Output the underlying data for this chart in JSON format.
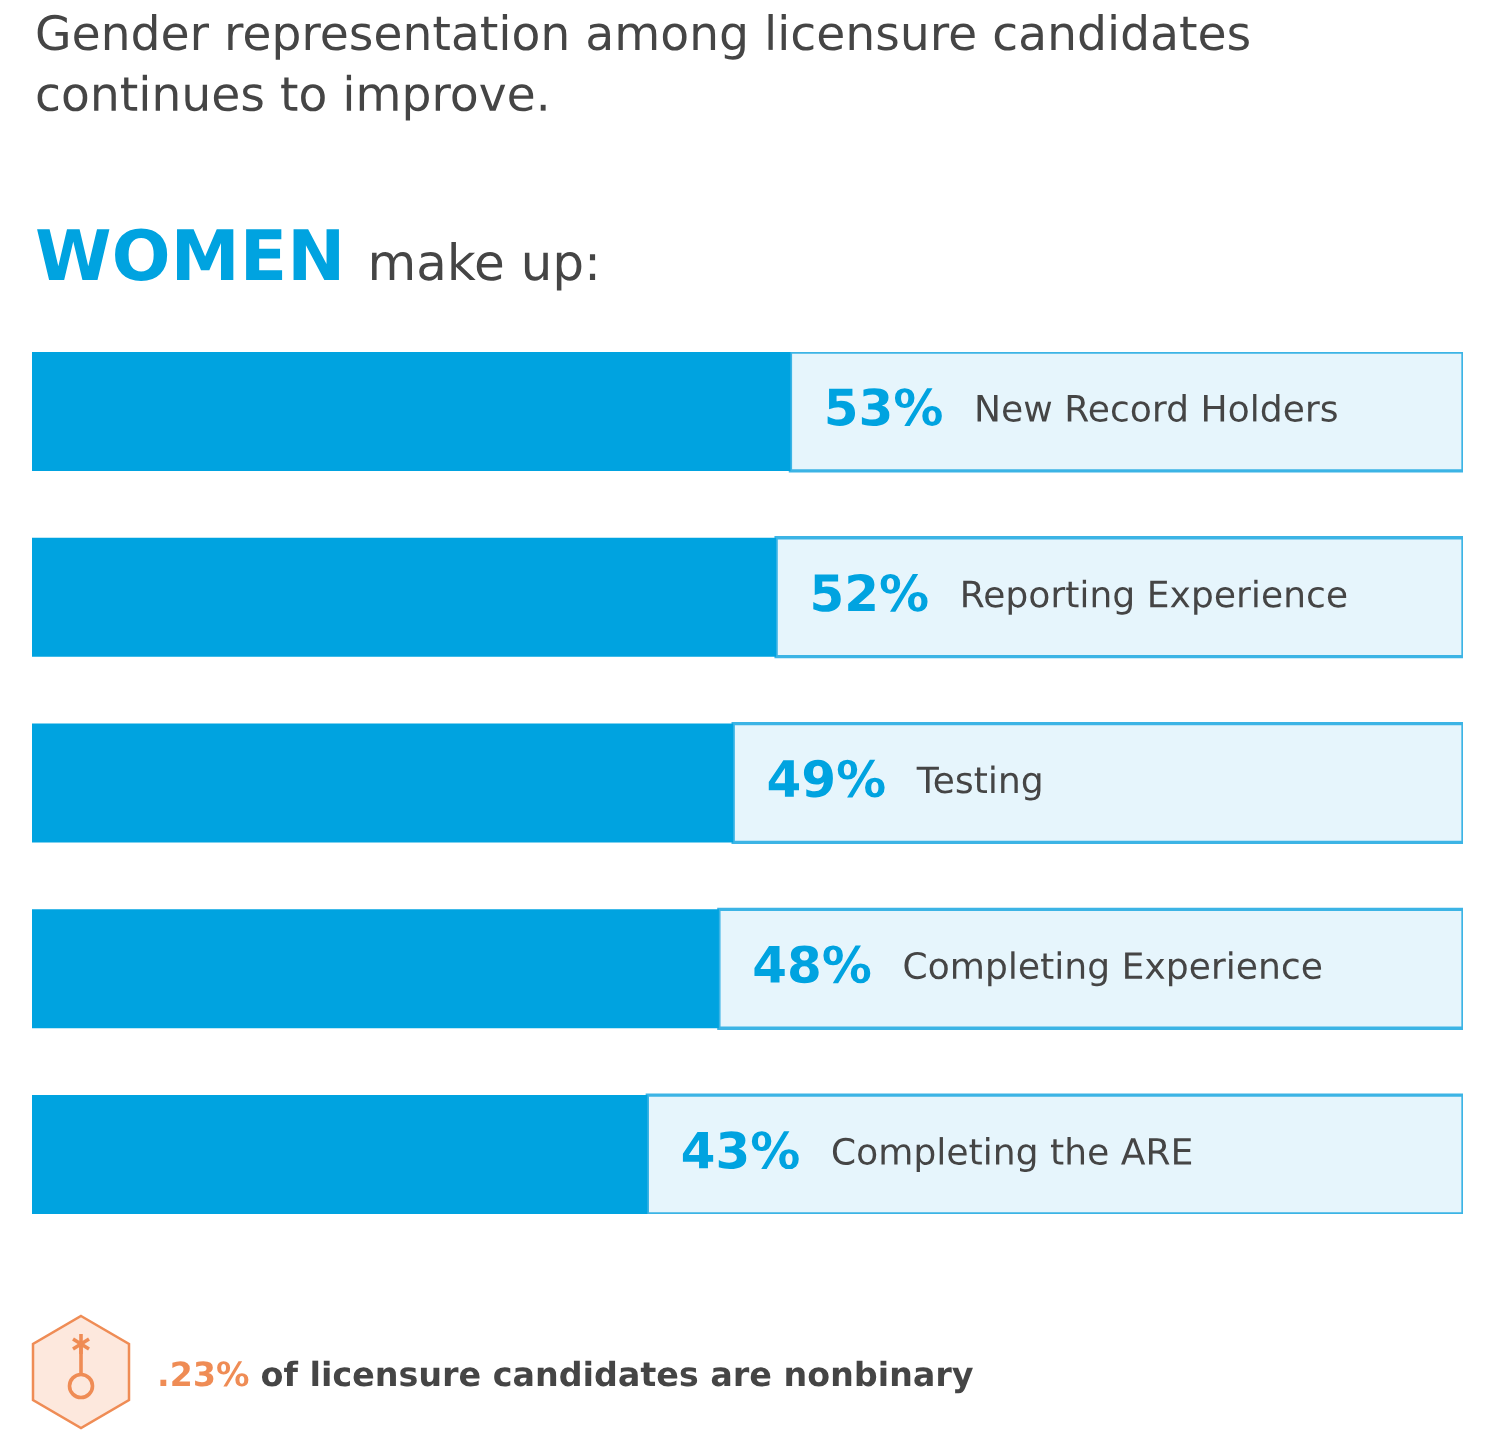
{
  "chart_data": {
    "type": "bar",
    "orientation": "horizontal",
    "stacked": true,
    "title": "Gender representation among licensure candidates\ncontinues to improve.",
    "subtitle": "WOMEN make up:",
    "categories": [
      "New Record Holders",
      "Reporting Experience",
      "Testing",
      "Completing Experience",
      "Completing the ARE"
    ],
    "series": [
      {
        "color": "#00a3e0",
        "values": [
          53,
          52,
          49,
          48,
          43
        ],
        "value_labels": [
          "53%",
          "52%",
          "49%",
          "48%",
          "43%"
        ]
      },
      {
        "color": "#e6f5fc",
        "values": [
          47,
          48,
          51,
          52,
          57
        ]
      }
    ],
    "xlim": [
      0,
      100
    ],
    "tick_labels": false,
    "annotations": [
      ".23% of licensure candidates are nonbinary"
    ]
  }
}
